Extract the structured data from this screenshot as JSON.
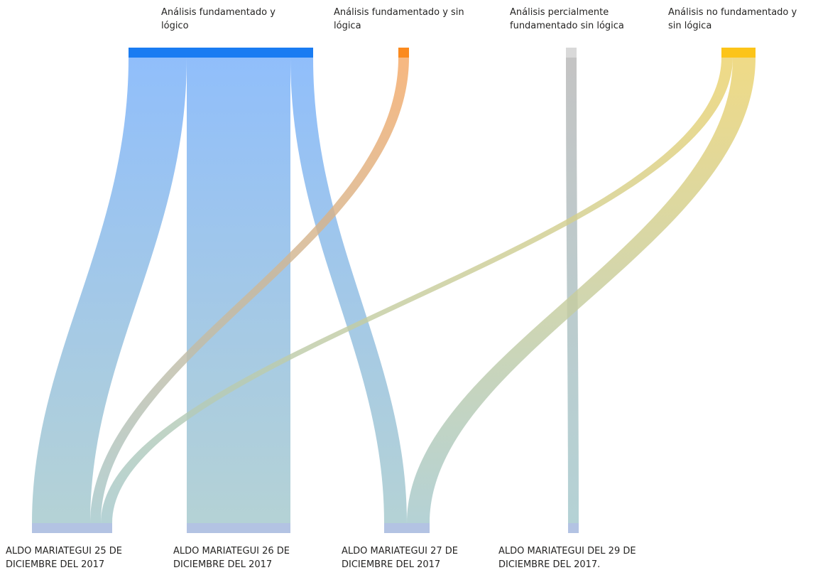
{
  "chart_data": {
    "type": "sankey",
    "sources": [
      {
        "id": "s1",
        "label": "Análisis fundamentado y\nlógico",
        "color": "#1a7cf2"
      },
      {
        "id": "s2",
        "label": "Análisis fundamentado y sin\nlógica",
        "color": "#fb8a1e"
      },
      {
        "id": "s3",
        "label": "Análisis percialmente\nfundamentado sin lógica",
        "color": "#d9d9d9"
      },
      {
        "id": "s4",
        "label": "Análisis  no fundamentado y\nsin lógica",
        "color": "#fcc419"
      }
    ],
    "targets": [
      {
        "id": "t1",
        "label": "ALDO MARIATEGUI 25 DE\nDICIEMBRE DEL 2017",
        "color": "#b3c3e3"
      },
      {
        "id": "t2",
        "label": "ALDO MARIATEGUI  26 DE\nDICIEMBRE DEL 2017",
        "color": "#b3c3e3"
      },
      {
        "id": "t3",
        "label": "ALDO MARIATEGUI  27 DE\nDICIEMBRE DEL 2017",
        "color": "#b3c3e3"
      },
      {
        "id": "t4",
        "label": "ALDO MARIATEGUI DEL 29 DE\nDICIEMBRE DEL 2017.",
        "color": "#b3c3e3"
      }
    ],
    "links": [
      {
        "source": "s1",
        "target": "t1",
        "value": 82,
        "color": "#78b0fa"
      },
      {
        "source": "s1",
        "target": "t2",
        "value": 146,
        "color": "#78b0fa"
      },
      {
        "source": "s1",
        "target": "t3",
        "value": 32,
        "color": "#78b0fa"
      },
      {
        "source": "s2",
        "target": "t1",
        "value": 15,
        "color": "#f5a865"
      },
      {
        "source": "s3",
        "target": "t4",
        "value": 15,
        "color": "#b7b7b7"
      },
      {
        "source": "s4",
        "target": "t1",
        "value": 16,
        "color": "#ecd26c"
      },
      {
        "source": "s4",
        "target": "t3",
        "value": 32,
        "color": "#ecd26c"
      }
    ],
    "bottom_tint": "#a4c8cc"
  }
}
